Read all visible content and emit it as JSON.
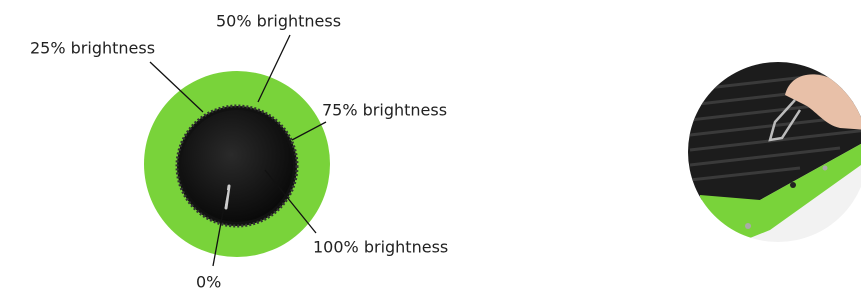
{
  "labels": [
    "25% brightness",
    "50% brightness",
    "75% brightness",
    "100% brightness",
    "0%"
  ]
}
